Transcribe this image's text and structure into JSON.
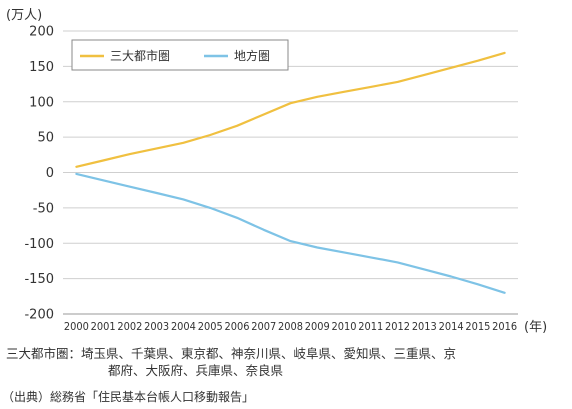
{
  "chart_data": {
    "type": "line",
    "title": "",
    "ylabel": "(万人)",
    "xlabel": "(年)",
    "ylim": [
      -200,
      200
    ],
    "yticks": [
      200,
      150,
      100,
      50,
      0,
      -50,
      -100,
      -150,
      -200
    ],
    "x": [
      "2000",
      "2001",
      "2002",
      "2003",
      "2004",
      "2005",
      "2006",
      "2007",
      "2008",
      "2009",
      "2010",
      "2011",
      "2012",
      "2013",
      "2014",
      "2015",
      "2016"
    ],
    "grid": true,
    "legend_position": "top-left",
    "series": [
      {
        "name": "三大都市圏",
        "color": "#f0c040",
        "values": [
          8,
          17,
          26,
          34,
          42,
          53,
          66,
          82,
          98,
          107,
          114,
          121,
          128,
          138,
          148,
          158,
          169
        ]
      },
      {
        "name": "地方圏",
        "color": "#7ec3e6",
        "values": [
          -2,
          -11,
          -20,
          -29,
          -38,
          -50,
          -64,
          -81,
          -97,
          -106,
          -113,
          -120,
          -127,
          -137,
          -147,
          -158,
          -170
        ]
      }
    ]
  },
  "note": {
    "line1": "三大都市圏：埼玉県、千葉県、東京都、神奈川県、岐阜県、愛知県、三重県、京",
    "line2": "都府、大阪府、兵庫県、奈良県"
  },
  "source": "（出典）総務省「住民基本台帳人口移動報告」"
}
